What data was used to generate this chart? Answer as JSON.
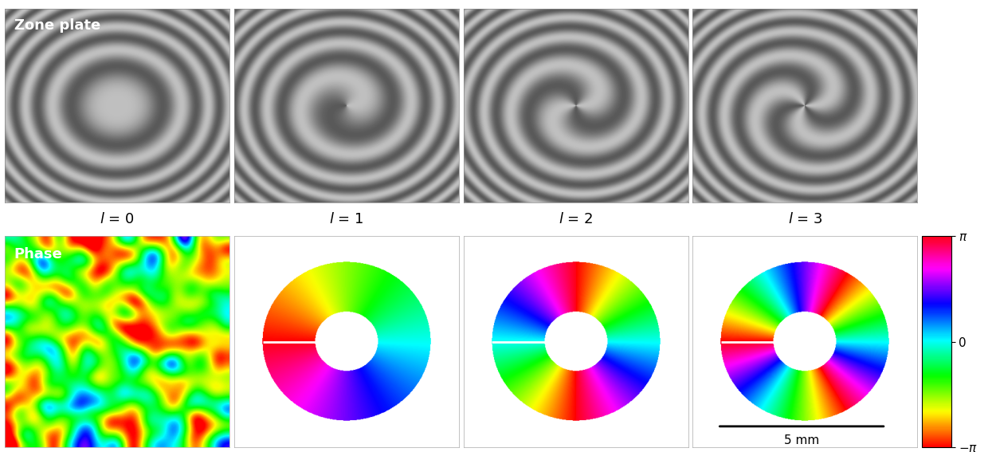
{
  "title_top": "Zone plate",
  "title_bottom": "Phase",
  "labels": [
    "l = 0",
    "l = 1",
    "l = 2",
    "l = 3"
  ],
  "scale_bar_text": "5 mm",
  "figsize": [
    12.5,
    5.67
  ],
  "dpi": 100,
  "n_zones": 6,
  "grid_size": 400,
  "phase_ring_inner": 0.28,
  "phase_ring_outer": 0.75,
  "zp_gray_low": 0.35,
  "zp_gray_high": 0.75,
  "label_fontsize": 13,
  "title_fontsize": 13
}
